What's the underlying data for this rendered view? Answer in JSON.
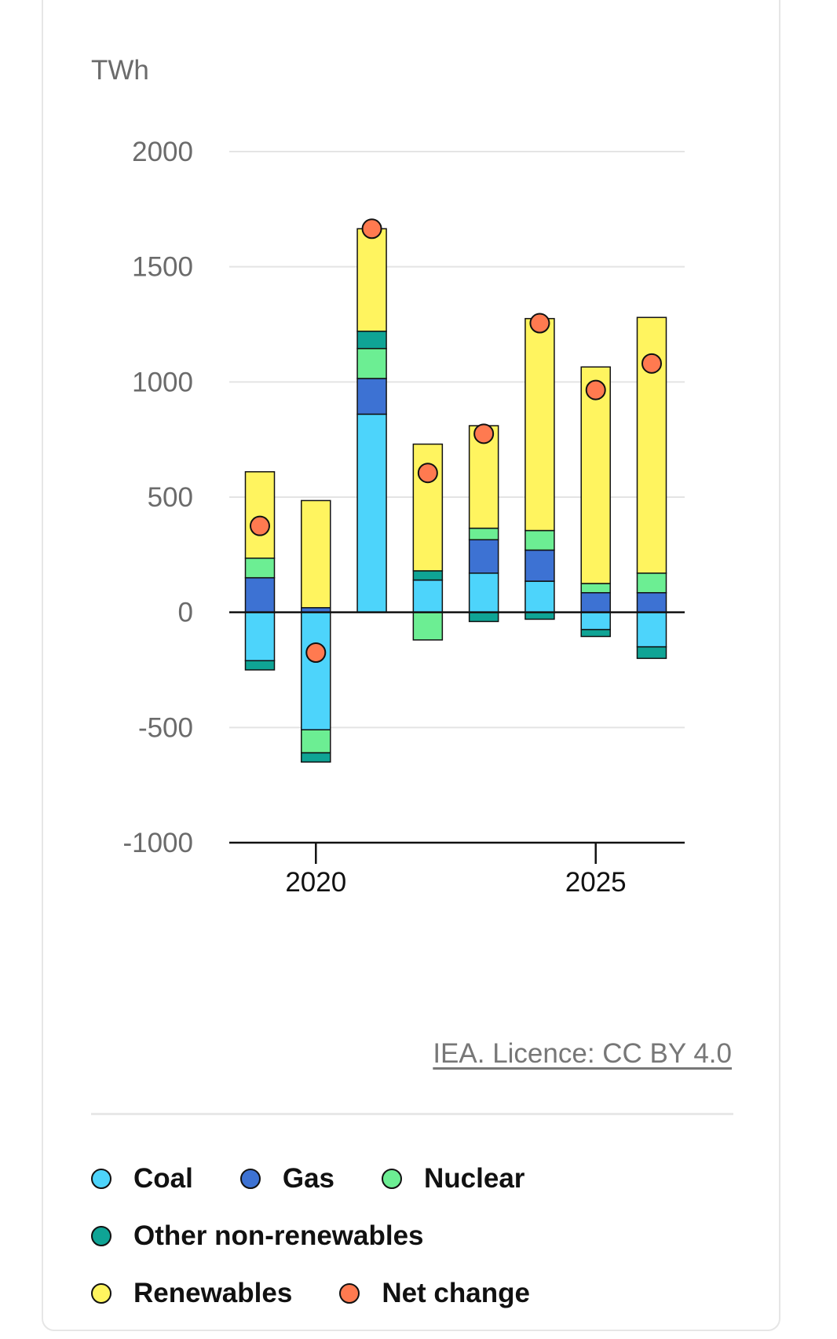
{
  "chart_data": {
    "type": "bar",
    "stacked": true,
    "unit": "TWh",
    "x": [
      2019,
      2020,
      2021,
      2022,
      2023,
      2024,
      2025,
      2026
    ],
    "xticks": [
      2020,
      2025
    ],
    "xtick_labels": [
      "2020",
      "2025"
    ],
    "ylim": [
      -1000,
      2000
    ],
    "yticks": [
      2000,
      1500,
      1000,
      500,
      0,
      -500,
      -1000
    ],
    "ytick_labels": [
      "2000",
      "1500",
      "1000",
      "500",
      "0",
      "-500",
      "-1000"
    ],
    "grid": true,
    "series": [
      {
        "name": "Coal",
        "color": "#4dd4fb",
        "values": [
          -210,
          -510,
          860,
          140,
          170,
          135,
          -75,
          -150
        ]
      },
      {
        "name": "Gas",
        "color": "#3d72d3",
        "values": [
          150,
          20,
          155,
          0,
          145,
          135,
          85,
          85
        ]
      },
      {
        "name": "Nuclear",
        "color": "#6cee93",
        "values": [
          85,
          -100,
          130,
          -120,
          50,
          85,
          40,
          85
        ]
      },
      {
        "name": "Other non-renewables",
        "color": "#0fa495",
        "values": [
          -40,
          -40,
          75,
          40,
          -40,
          -30,
          -30,
          -50
        ]
      },
      {
        "name": "Renewables",
        "color": "#fff45f",
        "values": [
          375,
          465,
          445,
          550,
          445,
          920,
          940,
          1110
        ]
      }
    ],
    "net_change": {
      "name": "Net change",
      "color": "#ff7a50",
      "values": [
        375,
        -175,
        1665,
        605,
        775,
        1255,
        965,
        1080
      ]
    }
  },
  "credit": "IEA. Licence: CC BY 4.0",
  "legend": [
    {
      "label": "Coal",
      "color": "#4dd4fb"
    },
    {
      "label": "Gas",
      "color": "#3d72d3"
    },
    {
      "label": "Nuclear",
      "color": "#6cee93"
    },
    {
      "label": "Other non-renewables",
      "color": "#0fa495"
    },
    {
      "label": "Renewables",
      "color": "#fff45f"
    },
    {
      "label": "Net change",
      "color": "#ff7a50"
    }
  ]
}
